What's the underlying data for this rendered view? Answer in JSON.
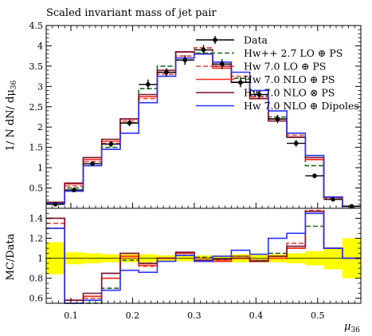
{
  "chart_data": {
    "type": "line",
    "title": "Scaled invariant mass of jet pair",
    "xlabel": "μ36",
    "xlabel_main": "μ",
    "xlabel_sub": "36",
    "ylabel": "1/N dN/dμ36",
    "ylabel_main": "1/ N dN/ dμ",
    "ylabel_sub": "36",
    "ratio_ylabel": "MC/Data",
    "xlim": [
      0.06,
      0.57
    ],
    "ylim": [
      0,
      4.5
    ],
    "ratio_ylim": [
      0.55,
      1.5
    ],
    "x_ticks": [
      "0.1",
      "0.2",
      "0.3",
      "0.4",
      "0.5"
    ],
    "y_ticks": [
      "0.5",
      "1",
      "1.5",
      "2",
      "2.5",
      "3",
      "3.5",
      "4",
      "4.5"
    ],
    "ratio_y_ticks": [
      "0.6",
      "0.8",
      "1",
      "1.2",
      "1.4"
    ],
    "legend_position": "top-right",
    "bin_edges": [
      0.06,
      0.09,
      0.12,
      0.15,
      0.18,
      0.21,
      0.24,
      0.27,
      0.3,
      0.33,
      0.36,
      0.39,
      0.42,
      0.45,
      0.48,
      0.51,
      0.54,
      0.57
    ],
    "data": {
      "name": "Data",
      "color": "#000000",
      "points": [
        {
          "x": 0.075,
          "y": 0.1,
          "err": 0.04
        },
        {
          "x": 0.105,
          "y": 0.45,
          "err": 0.04
        },
        {
          "x": 0.135,
          "y": 1.1,
          "err": 0.05
        },
        {
          "x": 0.165,
          "y": 1.58,
          "err": 0.07
        },
        {
          "x": 0.195,
          "y": 2.1,
          "err": 0.08
        },
        {
          "x": 0.225,
          "y": 3.05,
          "err": 0.12
        },
        {
          "x": 0.255,
          "y": 3.35,
          "err": 0.1
        },
        {
          "x": 0.285,
          "y": 3.65,
          "err": 0.12
        },
        {
          "x": 0.315,
          "y": 3.9,
          "err": 0.12
        },
        {
          "x": 0.345,
          "y": 3.55,
          "err": 0.12
        },
        {
          "x": 0.375,
          "y": 3.1,
          "err": 0.12
        },
        {
          "x": 0.405,
          "y": 2.8,
          "err": 0.1
        },
        {
          "x": 0.435,
          "y": 2.2,
          "err": 0.1
        },
        {
          "x": 0.465,
          "y": 1.6,
          "err": 0.08
        },
        {
          "x": 0.495,
          "y": 0.8,
          "err": 0.06
        },
        {
          "x": 0.525,
          "y": 0.22,
          "err": 0.03
        },
        {
          "x": 0.555,
          "y": 0.05,
          "err": 0.02
        }
      ]
    },
    "series": [
      {
        "name": "Hw++ 2.7 LO ⊕ PS",
        "color": "#1a6b1a",
        "dashed": true,
        "values": [
          0.13,
          0.5,
          1.05,
          1.5,
          2.1,
          2.95,
          3.5,
          3.85,
          3.95,
          3.55,
          3.2,
          2.75,
          2.25,
          1.75,
          1.05,
          0.25,
          0.05
        ],
        "ratio": [
          1.3,
          0.55,
          0.5,
          0.7,
          0.98,
          0.95,
          1.0,
          1.03,
          1.01,
          0.97,
          1.02,
          0.98,
          1.05,
          1.1,
          1.32,
          1.1,
          1.0
        ]
      },
      {
        "name": "Hw 7.0 LO ⊕ PS",
        "color": "#e8433b",
        "dashed": true,
        "values": [
          0.14,
          0.55,
          1.15,
          1.6,
          2.15,
          2.7,
          3.3,
          3.75,
          3.95,
          3.55,
          3.25,
          2.75,
          2.2,
          1.8,
          1.2,
          0.25,
          0.05
        ],
        "ratio": [
          1.35,
          0.55,
          0.6,
          0.8,
          1.0,
          0.92,
          1.0,
          1.05,
          1.0,
          0.98,
          1.02,
          0.98,
          1.0,
          1.15,
          1.48,
          1.1,
          1.0
        ]
      },
      {
        "name": "Hw 7.0 NLO ⊕ PS",
        "color": "#ff2a1a",
        "dashed": false,
        "values": [
          0.15,
          0.6,
          1.2,
          1.65,
          2.2,
          2.75,
          3.35,
          3.85,
          3.8,
          3.45,
          3.1,
          2.7,
          2.2,
          1.75,
          1.2,
          0.27,
          0.05
        ],
        "ratio": [
          1.4,
          0.58,
          0.62,
          0.8,
          1.02,
          0.93,
          1.0,
          1.05,
          0.97,
          0.97,
          1.0,
          0.97,
          1.0,
          1.1,
          1.45,
          1.1,
          1.0
        ]
      },
      {
        "name": "Hw 7.0 NLO ⊗ PS",
        "color": "#7a0f2a",
        "dashed": false,
        "values": [
          0.15,
          0.62,
          1.25,
          1.7,
          2.2,
          2.8,
          3.4,
          3.85,
          3.8,
          3.5,
          3.1,
          2.7,
          2.15,
          1.75,
          1.25,
          0.28,
          0.05
        ],
        "ratio": [
          1.4,
          0.58,
          0.65,
          0.85,
          1.05,
          0.95,
          1.0,
          1.06,
          0.98,
          0.99,
          1.0,
          0.97,
          1.02,
          1.12,
          1.47,
          1.1,
          1.0
        ]
      },
      {
        "name": "Hw 7.0 NLO ⊕ Dipoles",
        "color": "#2a33ff",
        "dashed": false,
        "values": [
          0.12,
          0.42,
          1.05,
          1.45,
          1.85,
          2.6,
          3.25,
          3.7,
          3.8,
          3.6,
          3.35,
          2.9,
          2.4,
          1.85,
          1.3,
          0.28,
          0.05
        ],
        "ratio": [
          1.3,
          0.48,
          0.58,
          0.68,
          0.88,
          0.86,
          0.97,
          1.03,
          0.97,
          1.02,
          1.08,
          1.04,
          1.2,
          1.25,
          1.45,
          1.1,
          1.0
        ]
      }
    ],
    "uncertainty_band": {
      "color": "#ffff00",
      "rel_half_width": [
        0.16,
        0.06,
        0.05,
        0.04,
        0.04,
        0.04,
        0.03,
        0.03,
        0.03,
        0.03,
        0.04,
        0.04,
        0.04,
        0.05,
        0.07,
        0.11,
        0.2
      ]
    }
  }
}
